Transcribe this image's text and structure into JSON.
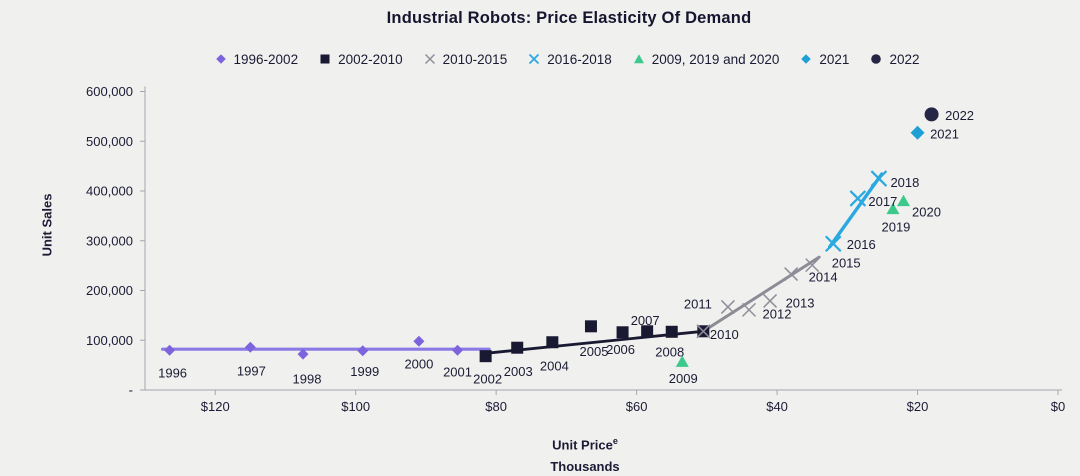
{
  "chart_data": {
    "type": "scatter",
    "title": "Industrial Robots: Price Elasticity Of Demand",
    "xlabel": "Unit Price",
    "xlabel_sup": "e",
    "xlabel_units": "Thousands",
    "ylabel": "Unit Sales",
    "grid": false,
    "legend_position": "top-center",
    "colors": {
      "background": "#f0f0ee",
      "text": "#1b1b35",
      "axis": "#a6a6b0"
    },
    "x_axis": {
      "min": 0,
      "max": 130,
      "reversed": true,
      "ticks": [
        {
          "value": 120,
          "label": "$120"
        },
        {
          "value": 100,
          "label": "$100"
        },
        {
          "value": 80,
          "label": "$80"
        },
        {
          "value": 60,
          "label": "$60"
        },
        {
          "value": 40,
          "label": "$40"
        },
        {
          "value": 20,
          "label": "$20"
        },
        {
          "value": 0,
          "label": "$0"
        }
      ]
    },
    "y_axis": {
      "min": 0,
      "max": 600000,
      "ticks": [
        {
          "value": 600000,
          "label": "600,000"
        },
        {
          "value": 500000,
          "label": "500,000"
        },
        {
          "value": 400000,
          "label": "400,000"
        },
        {
          "value": 300000,
          "label": "300,000"
        },
        {
          "value": 200000,
          "label": "200,000"
        },
        {
          "value": 100000,
          "label": "100,000"
        },
        {
          "value": 0,
          "label": "-"
        }
      ]
    },
    "series": [
      {
        "name": "1996-2002",
        "marker": "diamond",
        "color": "#7d64dd",
        "line_color": "#8b7ae6",
        "line_width": 3.2,
        "marker_size": 11,
        "trend": [
          [
            127.5,
            82000
          ],
          [
            81,
            82000
          ]
        ],
        "points": [
          {
            "label": "1996",
            "price": 126.5,
            "sales": 80000,
            "dx": 3,
            "dy": 23
          },
          {
            "label": "1997",
            "price": 115,
            "sales": 86000,
            "dx": 1,
            "dy": 24
          },
          {
            "label": "1998",
            "price": 107.5,
            "sales": 72000,
            "dx": 4,
            "dy": 25
          },
          {
            "label": "1999",
            "price": 99,
            "sales": 79000,
            "dx": 2,
            "dy": 21
          },
          {
            "label": "2000",
            "price": 91,
            "sales": 98000,
            "dx": 0,
            "dy": 23
          },
          {
            "label": "2001",
            "price": 85.5,
            "sales": 80000,
            "dx": 0,
            "dy": 22
          }
        ]
      },
      {
        "name": "2002-2010",
        "marker": "square",
        "color": "#191931",
        "line_color": "#191931",
        "line_width": 2.8,
        "marker_size": 12,
        "trend": [
          [
            82,
            73000
          ],
          [
            50.5,
            118000
          ]
        ],
        "points": [
          {
            "label": "2002",
            "price": 81.5,
            "sales": 68000,
            "dx": 2,
            "dy": 23
          },
          {
            "label": "2003",
            "price": 77,
            "sales": 85000,
            "dx": 1,
            "dy": 24
          },
          {
            "label": "2004",
            "price": 72,
            "sales": 96000,
            "dx": 2,
            "dy": 24
          },
          {
            "label": "2005",
            "price": 66.5,
            "sales": 128000,
            "dx": 3,
            "dy": 25
          },
          {
            "label": "2006",
            "price": 62,
            "sales": 116000,
            "dx": -2,
            "dy": 17
          },
          {
            "label": "2007",
            "price": 58.5,
            "sales": 118000,
            "dx": -2,
            "dy": -11
          },
          {
            "label": "2008",
            "price": 55,
            "sales": 117000,
            "dx": -2,
            "dy": 20
          },
          {
            "label": "2010",
            "price": 50.5,
            "sales": 118000,
            "dx": 21,
            "dy": 3
          }
        ]
      },
      {
        "name": "2010-2015",
        "marker": "xmark",
        "color": "#8e8e9a",
        "line_color": "#8c8c96",
        "line_width": 3,
        "marker_size": 13,
        "marker_stroke": 1.5,
        "trend": [
          [
            50.5,
            118000
          ],
          [
            34,
            267000
          ]
        ],
        "points": [
          {
            "label": "",
            "price": 50.5,
            "sales": 118000,
            "dx": 0,
            "dy": 0
          },
          {
            "label": "2011",
            "price": 47,
            "sales": 167000,
            "dx": -30,
            "dy": -3
          },
          {
            "label": "2012",
            "price": 44,
            "sales": 161000,
            "dx": 28,
            "dy": 4
          },
          {
            "label": "2013",
            "price": 41,
            "sales": 179000,
            "dx": 30,
            "dy": 2
          },
          {
            "label": "2014",
            "price": 38,
            "sales": 233000,
            "dx": 32,
            "dy": 3
          },
          {
            "label": "2015",
            "price": 35,
            "sales": 251000,
            "dx": 34,
            "dy": -2
          }
        ]
      },
      {
        "name": "2016-2018",
        "marker": "xmark",
        "color": "#29a9e0",
        "line_color": "#29a9e0",
        "line_width": 3.4,
        "marker_size": 15,
        "marker_stroke": 2.2,
        "trend": [
          [
            32.5,
            288000
          ],
          [
            25.1,
            434000
          ]
        ],
        "points": [
          {
            "label": "2016",
            "price": 32,
            "sales": 294000,
            "dx": 28,
            "dy": 1
          },
          {
            "label": "2017",
            "price": 28.5,
            "sales": 385000,
            "dx": 25,
            "dy": 3
          },
          {
            "label": "2018",
            "price": 25.5,
            "sales": 425000,
            "dx": 26,
            "dy": 4
          }
        ]
      },
      {
        "name": "2009, 2019 and 2020",
        "marker": "triangle",
        "color": "#3dc98c",
        "marker_size": 13,
        "points": [
          {
            "label": "2009",
            "price": 53.5,
            "sales": 57000,
            "dx": 1,
            "dy": 17
          },
          {
            "label": "2019",
            "price": 23.5,
            "sales": 364000,
            "dx": 3,
            "dy": 18
          },
          {
            "label": "2020",
            "price": 22,
            "sales": 380000,
            "dx": 23,
            "dy": 11
          }
        ]
      },
      {
        "name": "2021",
        "marker": "diamond",
        "color": "#1ea0d7",
        "marker_size": 14,
        "points": [
          {
            "label": "2021",
            "price": 20,
            "sales": 517000,
            "dx": 27,
            "dy": 1
          }
        ]
      },
      {
        "name": "2022",
        "marker": "circle",
        "color": "#252546",
        "marker_size": 14,
        "points": [
          {
            "label": "2022",
            "price": 18,
            "sales": 554000,
            "dx": 28,
            "dy": 1
          }
        ]
      }
    ]
  }
}
